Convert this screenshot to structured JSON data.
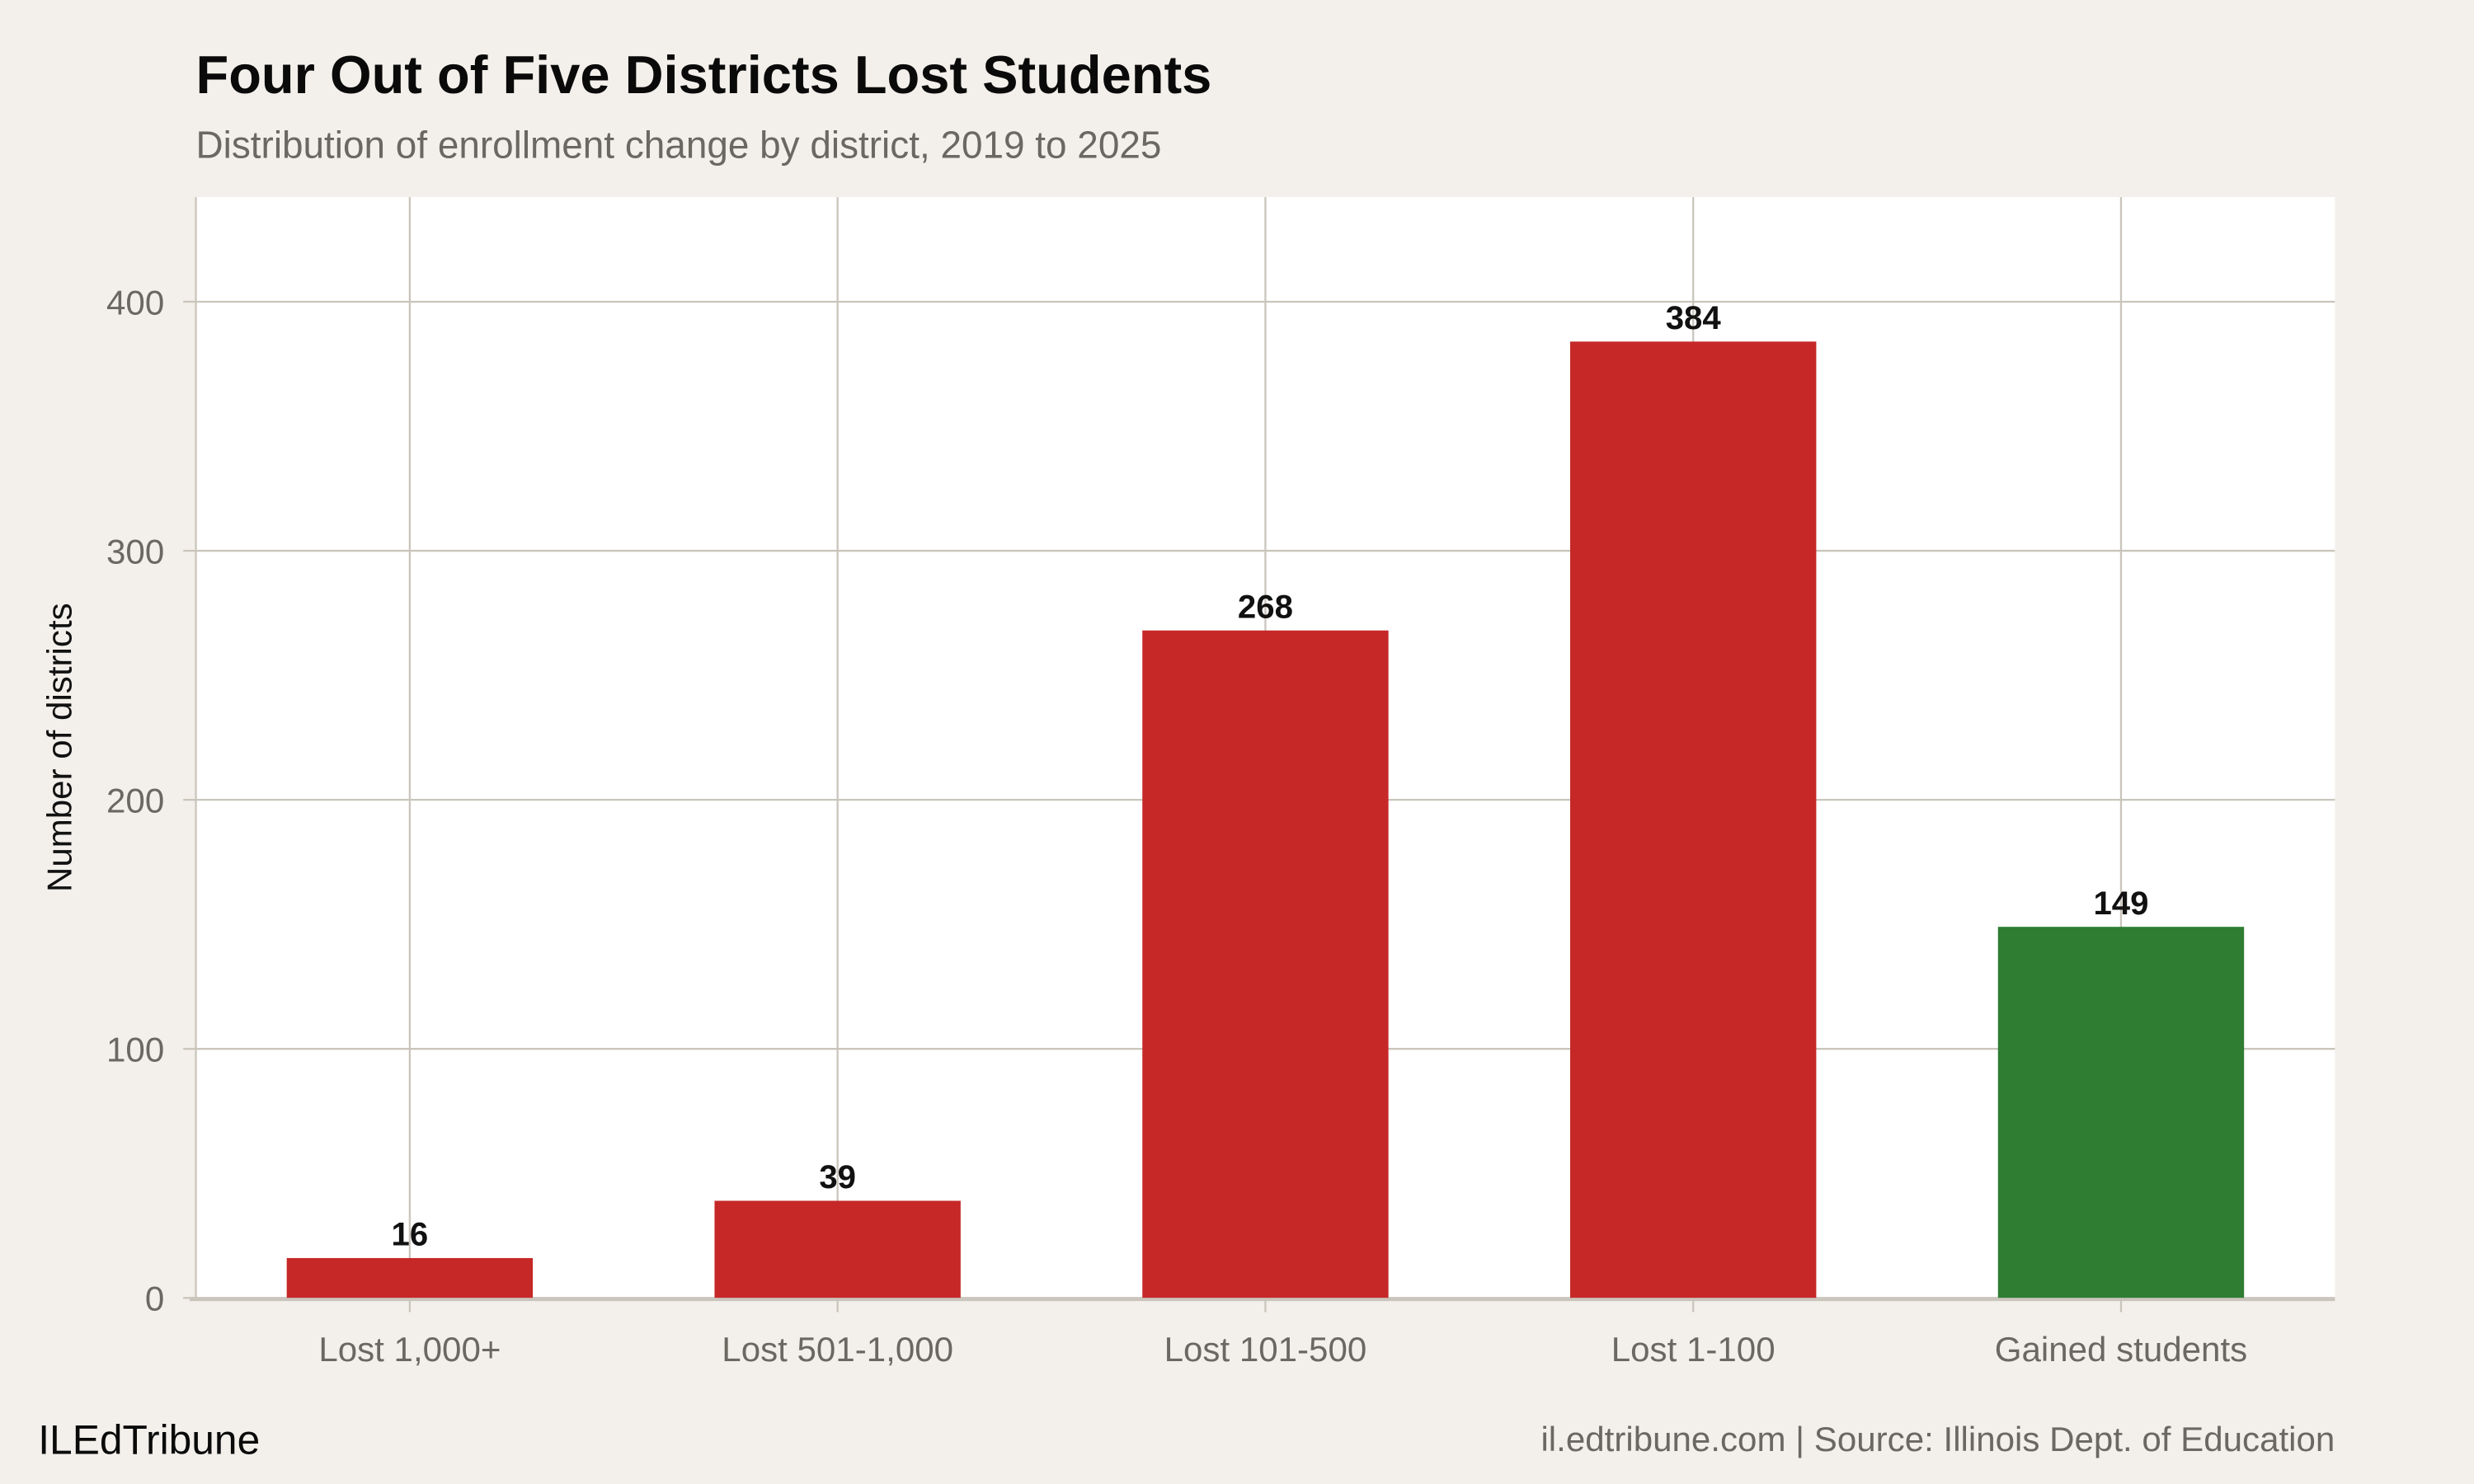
{
  "chart_data": {
    "type": "bar",
    "title": "Four Out of Five Districts Lost Students",
    "subtitle": "Distribution of enrollment change by district, 2019 to 2025",
    "xlabel": "",
    "ylabel": "Number of districts",
    "categories": [
      "Lost 1,000+",
      "Lost 501-1,000",
      "Lost 101-500",
      "Lost 1-100",
      "Gained students"
    ],
    "values": [
      16,
      39,
      268,
      384,
      149
    ],
    "data_labels": [
      "16",
      "39",
      "268",
      "384",
      "149"
    ],
    "bar_colors": [
      "#C62828",
      "#C62828",
      "#C62828",
      "#C62828",
      "#2E7D32"
    ],
    "yticks": [
      0,
      100,
      200,
      300,
      400
    ],
    "ytick_labels": [
      "0",
      "100",
      "200",
      "300",
      "400"
    ],
    "ylim": [
      0,
      442
    ],
    "grid": true
  },
  "footer": {
    "brand": "ILEdTribune",
    "source": "il.edtribune.com | Source: Illinois Dept. of Education"
  },
  "colors": {
    "background": "#F3F0EB",
    "panel": "#FFFFFF",
    "grid": "#CAC5BC",
    "loss": "#C62828",
    "gain": "#2E7D32"
  }
}
